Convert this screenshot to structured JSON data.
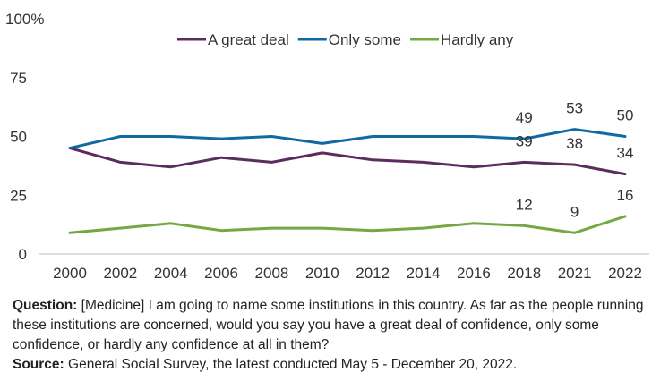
{
  "chart_data": {
    "type": "line",
    "x": [
      "2000",
      "2002",
      "2004",
      "2006",
      "2008",
      "2010",
      "2012",
      "2014",
      "2016",
      "2018",
      "2021",
      "2022"
    ],
    "ylim": [
      0,
      100
    ],
    "yticks": [
      0,
      25,
      50,
      75,
      100
    ],
    "ytick_labels": [
      "0",
      "25",
      "50",
      "75",
      "100%"
    ],
    "grid": false,
    "legend_position": "top",
    "series": [
      {
        "name": "A great deal",
        "color": "#5b2c5f",
        "values": [
          45,
          39,
          37,
          41,
          39,
          43,
          40,
          39,
          37,
          39,
          38,
          34
        ],
        "labels": {
          "9": "39",
          "10": "38",
          "11": "34"
        }
      },
      {
        "name": "Only some",
        "color": "#0e6aa0",
        "values": [
          45,
          50,
          50,
          49,
          50,
          47,
          50,
          50,
          50,
          49,
          53,
          50
        ],
        "labels": {
          "9": "49",
          "10": "53",
          "11": "50"
        }
      },
      {
        "name": "Hardly any",
        "color": "#75a844",
        "values": [
          9,
          11,
          13,
          10,
          11,
          11,
          10,
          11,
          13,
          12,
          9,
          16
        ],
        "labels": {
          "9": "12",
          "10": "9",
          "11": "16"
        }
      }
    ]
  },
  "caption": {
    "question_label": "Question:",
    "question_text": " [Medicine] I am going to name some institutions in this country. As far as the people running these institutions are concerned, would you say you have a great deal of confidence, only some confidence, or hardly any confidence at all in them?",
    "source_label": "Source:",
    "source_text": " General Social Survey, the latest conducted May 5 - December 20, 2022."
  }
}
